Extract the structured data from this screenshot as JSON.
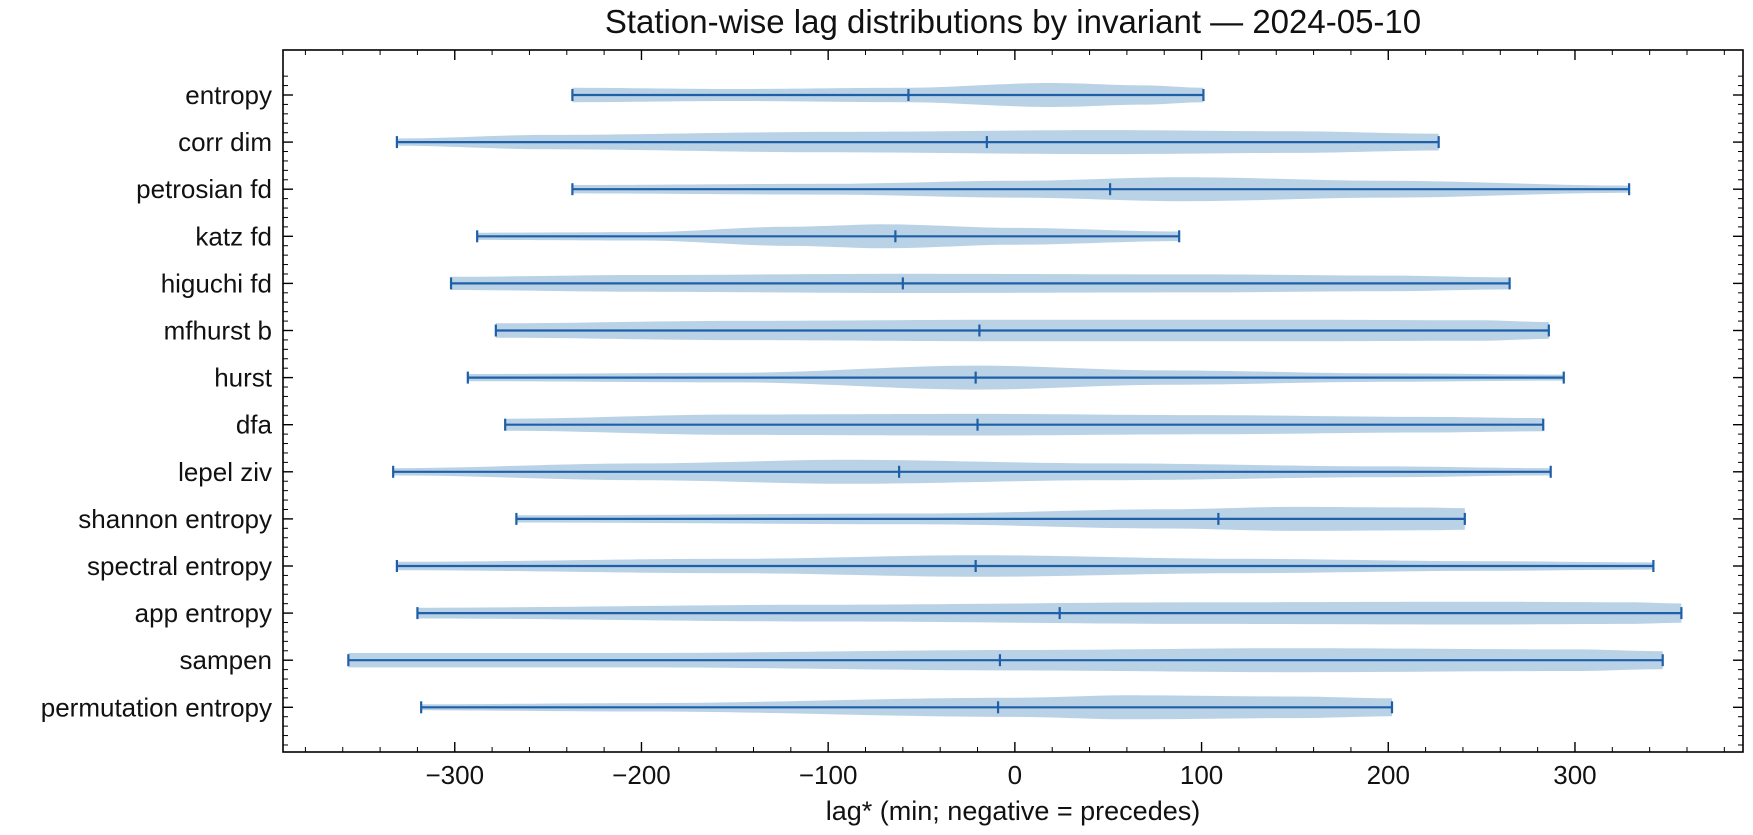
{
  "chart_data": {
    "type": "violin",
    "orientation": "horizontal",
    "title": "Station-wise lag distributions by invariant — 2024-05-10",
    "xlabel": "lag* (min; negative = precedes)",
    "ylabel": "",
    "xlim": [
      -392,
      390
    ],
    "xticks": [
      -300,
      -200,
      -100,
      0,
      100,
      200,
      300
    ],
    "xtick_labels": [
      "−300",
      "−200",
      "−100",
      "0",
      "100",
      "200",
      "300"
    ],
    "grid": false,
    "colors": {
      "fill": "#b3cde3",
      "line": "#1f5fa8"
    },
    "series": [
      {
        "category": "entropy",
        "min": -237,
        "median": -57,
        "max": 101,
        "density": [
          [
            -237,
            0.6
          ],
          [
            -150,
            0.5
          ],
          [
            -60,
            0.6
          ],
          [
            20,
            1.0
          ],
          [
            70,
            0.8
          ],
          [
            101,
            0.6
          ]
        ]
      },
      {
        "category": "corr dim",
        "min": -331,
        "median": -15,
        "max": 227,
        "density": [
          [
            -331,
            0.3
          ],
          [
            -250,
            0.6
          ],
          [
            -100,
            0.85
          ],
          [
            50,
            1.0
          ],
          [
            150,
            0.9
          ],
          [
            227,
            0.7
          ]
        ]
      },
      {
        "category": "petrosian fd",
        "min": -237,
        "median": 51,
        "max": 329,
        "density": [
          [
            -237,
            0.35
          ],
          [
            -100,
            0.45
          ],
          [
            0,
            0.7
          ],
          [
            90,
            1.0
          ],
          [
            200,
            0.7
          ],
          [
            329,
            0.3
          ]
        ]
      },
      {
        "category": "katz fd",
        "min": -288,
        "median": -64,
        "max": 88,
        "density": [
          [
            -288,
            0.3
          ],
          [
            -200,
            0.35
          ],
          [
            -120,
            0.8
          ],
          [
            -70,
            1.0
          ],
          [
            0,
            0.7
          ],
          [
            88,
            0.4
          ]
        ]
      },
      {
        "category": "higuchi fd",
        "min": -302,
        "median": -60,
        "max": 265,
        "density": [
          [
            -302,
            0.55
          ],
          [
            -200,
            0.7
          ],
          [
            -60,
            0.8
          ],
          [
            100,
            0.75
          ],
          [
            200,
            0.65
          ],
          [
            265,
            0.5
          ]
        ]
      },
      {
        "category": "mfhurst b",
        "min": -278,
        "median": -19,
        "max": 286,
        "density": [
          [
            -278,
            0.6
          ],
          [
            -150,
            0.8
          ],
          [
            0,
            0.9
          ],
          [
            150,
            0.9
          ],
          [
            250,
            0.85
          ],
          [
            286,
            0.7
          ]
        ]
      },
      {
        "category": "hurst",
        "min": -293,
        "median": -21,
        "max": 294,
        "density": [
          [
            -293,
            0.3
          ],
          [
            -150,
            0.4
          ],
          [
            -20,
            1.0
          ],
          [
            80,
            0.6
          ],
          [
            200,
            0.35
          ],
          [
            294,
            0.25
          ]
        ]
      },
      {
        "category": "dfa",
        "min": -273,
        "median": -20,
        "max": 283,
        "density": [
          [
            -273,
            0.5
          ],
          [
            -150,
            0.85
          ],
          [
            -20,
            0.9
          ],
          [
            100,
            0.8
          ],
          [
            220,
            0.65
          ],
          [
            283,
            0.55
          ]
        ]
      },
      {
        "category": "lepel ziv",
        "min": -333,
        "median": -62,
        "max": 287,
        "density": [
          [
            -333,
            0.3
          ],
          [
            -200,
            0.7
          ],
          [
            -90,
            1.0
          ],
          [
            50,
            0.7
          ],
          [
            200,
            0.45
          ],
          [
            287,
            0.3
          ]
        ]
      },
      {
        "category": "shannon entropy",
        "min": -267,
        "median": 109,
        "max": 241,
        "density": [
          [
            -267,
            0.3
          ],
          [
            -50,
            0.45
          ],
          [
            80,
            0.8
          ],
          [
            150,
            1.0
          ],
          [
            220,
            0.95
          ],
          [
            241,
            0.9
          ]
        ]
      },
      {
        "category": "spectral entropy",
        "min": -331,
        "median": -21,
        "max": 342,
        "density": [
          [
            -331,
            0.35
          ],
          [
            -150,
            0.6
          ],
          [
            -20,
            0.9
          ],
          [
            120,
            0.6
          ],
          [
            250,
            0.4
          ],
          [
            342,
            0.3
          ]
        ]
      },
      {
        "category": "app entropy",
        "min": -320,
        "median": 24,
        "max": 357,
        "density": [
          [
            -320,
            0.45
          ],
          [
            -100,
            0.7
          ],
          [
            100,
            0.9
          ],
          [
            250,
            0.95
          ],
          [
            330,
            0.9
          ],
          [
            357,
            0.8
          ]
        ]
      },
      {
        "category": "sampen",
        "min": -357,
        "median": -8,
        "max": 347,
        "density": [
          [
            -357,
            0.6
          ],
          [
            -200,
            0.6
          ],
          [
            0,
            0.85
          ],
          [
            150,
            1.0
          ],
          [
            300,
            0.9
          ],
          [
            347,
            0.75
          ]
        ]
      },
      {
        "category": "permutation entropy",
        "min": -318,
        "median": -9,
        "max": 202,
        "density": [
          [
            -318,
            0.25
          ],
          [
            -200,
            0.35
          ],
          [
            0,
            0.8
          ],
          [
            60,
            1.0
          ],
          [
            150,
            0.9
          ],
          [
            202,
            0.75
          ]
        ]
      }
    ]
  }
}
